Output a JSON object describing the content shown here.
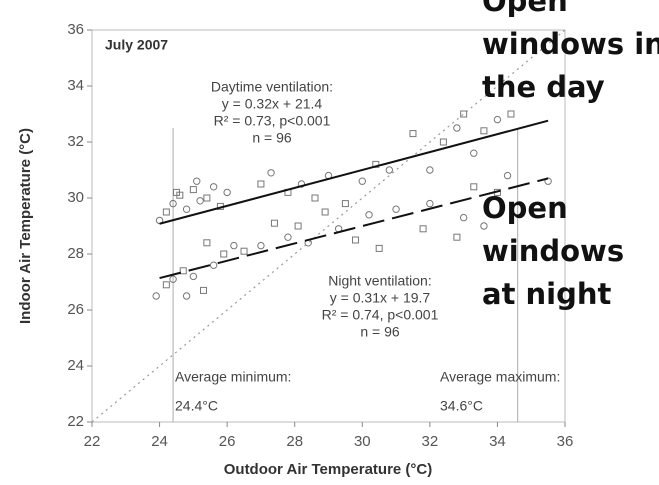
{
  "chart_data": {
    "type": "scatter",
    "title": "July 2007",
    "xlabel": "Outdoor Air Temperature (°C)",
    "ylabel": "Indoor Air Temperature (°C)",
    "xlim": [
      22,
      36
    ],
    "ylim": [
      22,
      36
    ],
    "xticks": [
      22,
      24,
      26,
      28,
      30,
      32,
      34,
      36
    ],
    "yticks": [
      22,
      24,
      26,
      28,
      30,
      32,
      34,
      36
    ],
    "series": [
      {
        "color": "#777",
        "x": [
          24.0,
          24.2,
          24.4,
          24.6,
          24.8,
          25.0,
          25.2,
          25.4,
          25.6,
          25.8,
          26.0,
          24.5,
          25.1,
          27.0,
          27.3,
          27.8,
          28.2,
          28.6,
          29.0,
          29.5,
          30.0,
          30.4,
          30.8,
          31.5,
          32.0,
          32.4,
          32.8,
          33.0,
          33.3,
          33.6,
          34.0,
          34.4,
          35.5
        ],
        "values": [
          29.2,
          29.5,
          29.8,
          30.1,
          29.6,
          30.3,
          29.9,
          30.0,
          30.4,
          29.7,
          30.2,
          30.2,
          30.6,
          30.5,
          30.9,
          30.2,
          30.5,
          30.0,
          30.8,
          29.8,
          30.6,
          31.2,
          31.0,
          32.3,
          31.0,
          32.0,
          32.5,
          33.0,
          31.6,
          32.4,
          32.8,
          33.0,
          30.6
        ]
      },
      {
        "color": "#777",
        "x": [
          23.9,
          24.2,
          24.4,
          24.7,
          25.0,
          25.3,
          25.6,
          25.9,
          26.2,
          26.5,
          24.8,
          25.4,
          27.0,
          27.4,
          27.8,
          28.1,
          28.4,
          28.9,
          29.3,
          29.8,
          30.2,
          30.5,
          31.0,
          31.8,
          32.0,
          32.8,
          33.0,
          33.3,
          33.6,
          34.0,
          34.3
        ],
        "values": [
          26.5,
          26.9,
          27.1,
          27.4,
          27.2,
          26.7,
          27.6,
          28.0,
          28.3,
          28.1,
          26.5,
          28.4,
          28.3,
          29.1,
          28.6,
          29.0,
          28.4,
          29.5,
          28.9,
          28.5,
          29.4,
          28.2,
          29.6,
          28.9,
          29.8,
          28.6,
          29.3,
          30.4,
          29.0,
          30.2,
          30.8
        ]
      }
    ],
    "fits": [
      {
        "x": [
          24,
          35.5
        ],
        "values": [
          29.08,
          32.76
        ],
        "color": "#111",
        "dash": "solid",
        "lines": [
          "Daytime ventilation:",
          "y = 0.32x + 21.4",
          "R² = 0.73, p<0.001",
          "n = 96"
        ]
      },
      {
        "x": [
          24,
          35.5
        ],
        "values": [
          27.14,
          30.7
        ],
        "color": "#111",
        "dash": "dashed",
        "lines": [
          "Night ventilation:",
          "y = 0.31x + 19.7",
          "R² = 0.74, p<0.001",
          "n = 96"
        ]
      }
    ],
    "identity_line": {
      "x": [
        22,
        36
      ],
      "values": [
        22,
        36
      ],
      "color": "#999",
      "dash": "dotted"
    },
    "reference_lines": [
      {
        "value": 24.4,
        "caption": "Average minimum:",
        "label": "24.4°C"
      },
      {
        "value": 34.6,
        "caption": "Average maximum:",
        "label": "34.6°C"
      }
    ],
    "overlays": [
      {
        "lines": [
          "Open",
          "windows in",
          "the day"
        ]
      },
      {
        "lines": [
          "Open",
          "windows",
          "at night"
        ]
      }
    ]
  }
}
